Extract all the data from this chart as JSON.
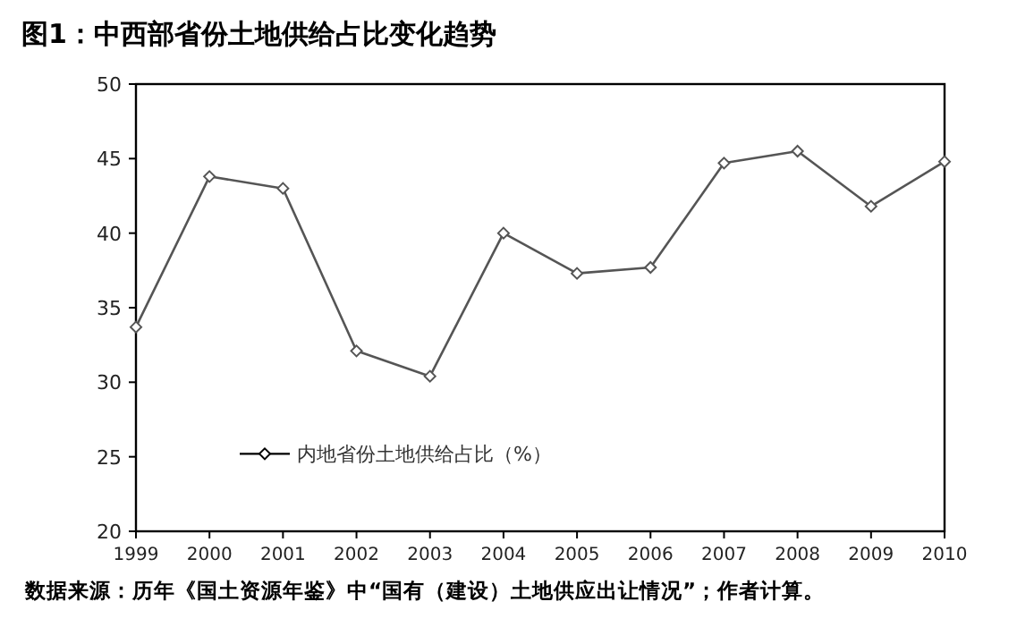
{
  "chart_data": {
    "type": "line",
    "title": "图1：中西部省份土地供给占比变化趋势",
    "x": [
      1999,
      2000,
      2001,
      2002,
      2003,
      2004,
      2005,
      2006,
      2007,
      2008,
      2009,
      2010
    ],
    "series": [
      {
        "name": "内地省份土地供给占比（%）",
        "color": "#555555",
        "values": [
          33.7,
          43.8,
          43.0,
          32.1,
          30.4,
          40.0,
          37.3,
          37.7,
          44.7,
          45.5,
          41.8,
          44.8
        ]
      }
    ],
    "xlim": [
      1999,
      2010
    ],
    "xticks": [
      1999,
      2000,
      2001,
      2002,
      2003,
      2004,
      2005,
      2006,
      2007,
      2008,
      2009,
      2010
    ],
    "ylim": [
      20,
      50
    ],
    "yticks": [
      20,
      25,
      30,
      35,
      40,
      45,
      50
    ],
    "marker": "diamond",
    "line_style": "solid",
    "grid": false,
    "legend": "bottom left",
    "annotations": [
      "数据来源：历年《国土资源年鉴》中“国有（建设）土地供应出让情况”；作者计算。"
    ]
  }
}
